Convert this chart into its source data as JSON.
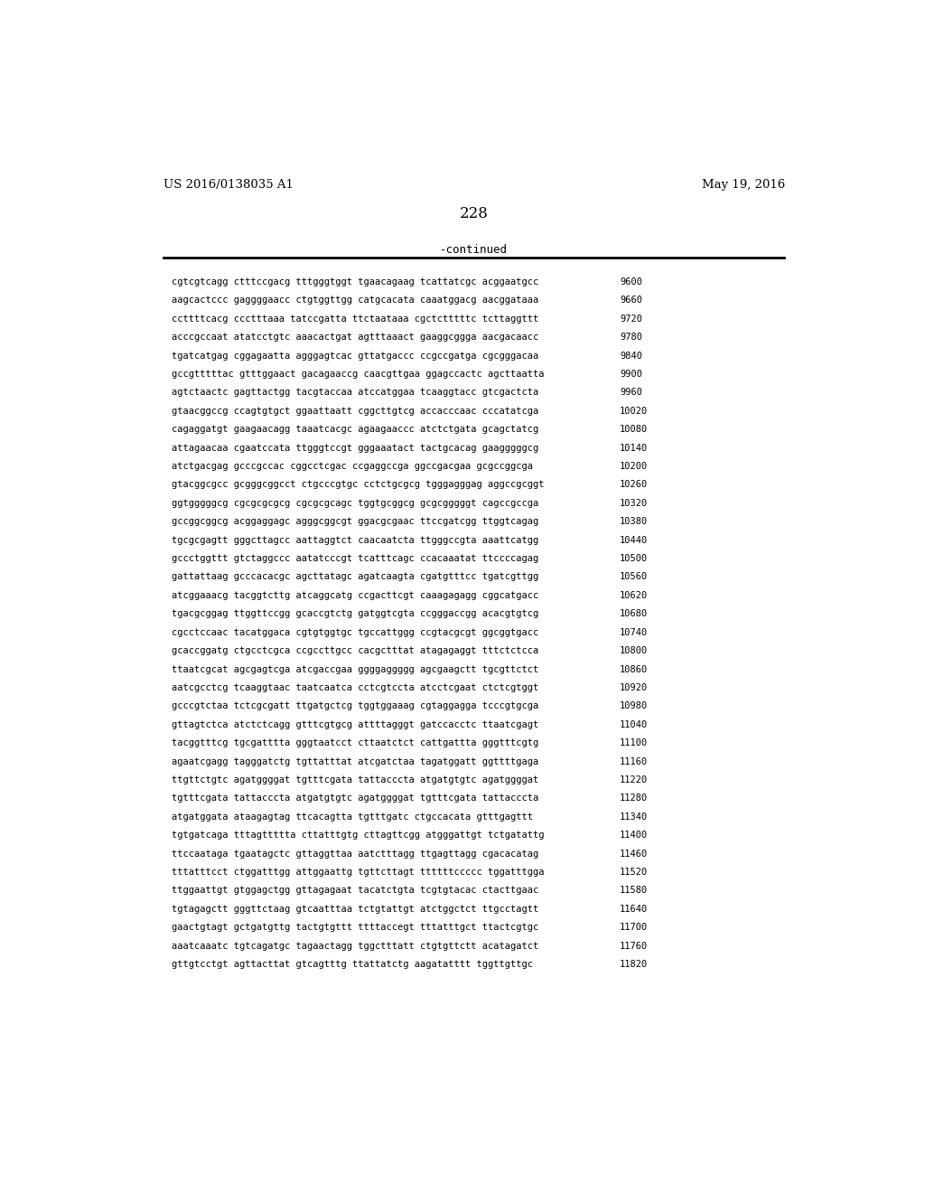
{
  "patent_number": "US 2016/0138035 A1",
  "date": "May 19, 2016",
  "page_number": "228",
  "continued_text": "-continued",
  "background_color": "#ffffff",
  "text_color": "#000000",
  "sequence_lines": [
    [
      "cgtcgtcagg ctttccgacg tttgggtggt tgaacagaag tcattatcgc acggaatgcc",
      "9600"
    ],
    [
      "aagcactccc gaggggaacc ctgtggttgg catgcacata caaatggacg aacggataaa",
      "9660"
    ],
    [
      "ccttttcacg ccctttaaa tatccgatta ttctaataaa cgctctttttc tcttaggttt",
      "9720"
    ],
    [
      "acccgccaat atatcctgtc aaacactgat agtttaaact gaaggcggga aacgacaacc",
      "9780"
    ],
    [
      "tgatcatgag cggagaatta agggagtcac gttatgaccc ccgccgatga cgcgggacaa",
      "9840"
    ],
    [
      "gccgtttttac gtttggaact gacagaaccg caacgttgaa ggagccactc agcttaatta",
      "9900"
    ],
    [
      "agtctaactc gagttactgg tacgtaccaa atccatggaa tcaaggtacc gtcgactcta",
      "9960"
    ],
    [
      "gtaacggccg ccagtgtgct ggaattaatt cggcttgtcg accacccaac cccatatcga",
      "10020"
    ],
    [
      "cagaggatgt gaagaacagg taaatcacgc agaagaaccc atctctgata gcagctatcg",
      "10080"
    ],
    [
      "attagaacaa cgaatccata ttgggtccgt gggaaatact tactgcacag gaagggggcg",
      "10140"
    ],
    [
      "atctgacgag gcccgccac cggcctcgac ccgaggccga ggccgacgaa gcgccggcga",
      "10200"
    ],
    [
      "gtacggcgcc gcgggcggcct ctgcccgtgc cctctgcgcg tgggagggag aggccgcggt",
      "10260"
    ],
    [
      "ggtgggggcg cgcgcgcgcg cgcgcgcagc tggtgcggcg gcgcgggggt cagccgccga",
      "10320"
    ],
    [
      "gccggcggcg acggaggagc agggcggcgt ggacgcgaac ttccgatcgg ttggtcagag",
      "10380"
    ],
    [
      "tgcgcgagtt gggcttagcc aattaggtct caacaatcta ttgggccgta aaattcatgg",
      "10440"
    ],
    [
      "gccctggttt gtctaggccc aatatcccgt tcatttcagc ccacaaatat ttccccagag",
      "10500"
    ],
    [
      "gattattaag gcccacacgc agcttatagc agatcaagta cgatgtttcc tgatcgttgg",
      "10560"
    ],
    [
      "atcggaaacg tacggtcttg atcaggcatg ccgacttcgt caaagagagg cggcatgacc",
      "10620"
    ],
    [
      "tgacgcggag ttggttccgg gcaccgtctg gatggtcgta ccgggaccgg acacgtgtcg",
      "10680"
    ],
    [
      "cgcctccaac tacatggaca cgtgtggtgc tgccattggg ccgtacgcgt ggcggtgacc",
      "10740"
    ],
    [
      "gcaccggatg ctgcctcgca ccgccttgcc cacgctttat atagagaggt tttctctcca",
      "10800"
    ],
    [
      "ttaatcgcat agcgagtcga atcgaccgaa ggggaggggg agcgaagctt tgcgttctct",
      "10860"
    ],
    [
      "aatcgcctcg tcaaggtaac taatcaatca cctcgtccta atcctcgaat ctctcgtggt",
      "10920"
    ],
    [
      "gcccgtctaa tctcgcgatt ttgatgctcg tggtggaaag cgtaggagga tcccgtgcga",
      "10980"
    ],
    [
      "gttagtctca atctctcagg gtttcgtgcg attttagggt gatccacctc ttaatcgagt",
      "11040"
    ],
    [
      "tacggtttcg tgcgatttta gggtaatcct cttaatctct cattgattta gggtttcgtg",
      "11100"
    ],
    [
      "agaatcgagg tagggatctg tgttatttat atcgatctaa tagatggatt ggttttgaga",
      "11160"
    ],
    [
      "ttgttctgtc agatggggat tgtttcgata tattacccta atgatgtgtc agatggggat",
      "11220"
    ],
    [
      "tgtttcgata tattacccta atgatgtgtc agatggggat tgtttcgata tattacccta",
      "11280"
    ],
    [
      "atgatggata ataagagtag ttcacagtta tgtttgatc ctgccacata gtttgagttt",
      "11340"
    ],
    [
      "tgtgatcaga tttagttttta cttatttgtg cttagttcgg atgggattgt tctgatattg",
      "11400"
    ],
    [
      "ttccaataga tgaatagctc gttaggttaa aatctttagg ttgagttagg cgacacatag",
      "11460"
    ],
    [
      "tttatttcct ctggatttgg attggaattg tgttcttagt ttttttccccc tggatttgga",
      "11520"
    ],
    [
      "ttggaattgt gtggagctgg gttagagaat tacatctgta tcgtgtacac ctacttgaac",
      "11580"
    ],
    [
      "tgtagagctt gggttctaag gtcaatttaa tctgtattgt atctggctct ttgcctagtt",
      "11640"
    ],
    [
      "gaactgtagt gctgatgttg tactgtgttt ttttaccegt tttatttgct ttactcgtgc",
      "11700"
    ],
    [
      "aaatcaaatc tgtcagatgc tagaactagg tggctttatt ctgtgttctt acatagatct",
      "11760"
    ],
    [
      "gttgtcctgt agttacttat gtcagtttg ttattatctg aagatatttt tggttgttgc",
      "11820"
    ]
  ]
}
